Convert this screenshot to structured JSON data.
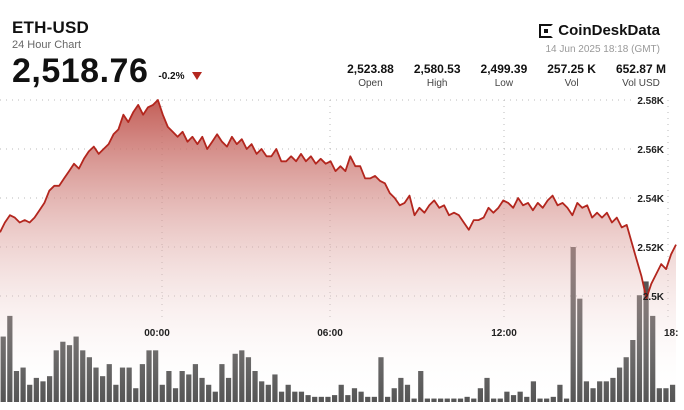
{
  "header": {
    "symbol": "ETH-USD",
    "subtitle": "24 Hour Chart",
    "price": "2,518.76",
    "change": "-0.2%"
  },
  "brand": {
    "name": "CoinDeskData",
    "timestamp": "14 Jun 2025 18:18 (GMT)"
  },
  "stats": [
    {
      "value": "2,523.88",
      "label": "Open"
    },
    {
      "value": "2,580.53",
      "label": "High"
    },
    {
      "value": "2,499.39",
      "label": "Low"
    },
    {
      "value": "257.25 K",
      "label": "Vol"
    },
    {
      "value": "652.87 M",
      "label": "Vol USD"
    }
  ],
  "colors": {
    "line": "#b3261e",
    "fill_top": "#c0564f",
    "volume": "#555555",
    "down_arrow": "#b3261e"
  },
  "chart_data": {
    "type": "area",
    "y_ticks": [
      "2.58K",
      "2.56K",
      "2.54K",
      "2.52K",
      "2.5K"
    ],
    "x_ticks": [
      "00:00",
      "06:00",
      "12:00",
      "18:"
    ],
    "ylim": [
      2500,
      2580
    ],
    "grid": true,
    "series": [
      {
        "values": [
          2526,
          2530,
          2533,
          2532,
          2530,
          2531,
          2530,
          2532,
          2535,
          2538,
          2543,
          2545,
          2545,
          2548,
          2551,
          2554,
          2552,
          2556,
          2559,
          2561,
          2558,
          2560,
          2562,
          2566,
          2568,
          2574,
          2571,
          2575,
          2578,
          2574,
          2577,
          2578,
          2580,
          2574,
          2569,
          2567,
          2565,
          2567,
          2563,
          2565,
          2562,
          2565,
          2560,
          2563,
          2566,
          2563,
          2561,
          2565,
          2562,
          2564,
          2560,
          2562,
          2558,
          2560,
          2557,
          2557,
          2560,
          2555,
          2555,
          2557,
          2555,
          2558,
          2555,
          2557,
          2554,
          2556,
          2554,
          2555,
          2551,
          2553,
          2551,
          2557,
          2553,
          2553,
          2548,
          2548,
          2549,
          2547,
          2546,
          2542,
          2540,
          2537,
          2538,
          2541,
          2533,
          2536,
          2534,
          2537,
          2539,
          2536,
          2537,
          2533,
          2534,
          2533,
          2530,
          2527,
          2531,
          2531,
          2532,
          2536,
          2534,
          2536,
          2539,
          2538,
          2536,
          2540,
          2537,
          2538,
          2535,
          2538,
          2536,
          2539,
          2541,
          2537,
          2538,
          2536,
          2533,
          2538,
          2536,
          2537,
          2532,
          2534,
          2532,
          2534,
          2530,
          2532,
          2528,
          2529,
          2522,
          2515,
          2508,
          2499,
          2505,
          2509,
          2513,
          2511,
          2517,
          2521
        ]
      }
    ],
    "volume": [
      38,
      50,
      18,
      20,
      10,
      14,
      12,
      15,
      30,
      35,
      33,
      38,
      30,
      26,
      20,
      15,
      22,
      10,
      20,
      20,
      8,
      22,
      30,
      30,
      10,
      18,
      8,
      18,
      16,
      22,
      14,
      10,
      6,
      22,
      14,
      28,
      30,
      26,
      18,
      12,
      10,
      16,
      6,
      10,
      6,
      6,
      4,
      3,
      3,
      3,
      4,
      10,
      4,
      8,
      6,
      3,
      3,
      26,
      3,
      8,
      14,
      10,
      2,
      18,
      2,
      2,
      2,
      2,
      2,
      2,
      3,
      2,
      8,
      14,
      2,
      2,
      6,
      4,
      6,
      3,
      12,
      2,
      2,
      3,
      10,
      2,
      90,
      60,
      12,
      8,
      12,
      12,
      14,
      20,
      26,
      36,
      62,
      70,
      50,
      8,
      8,
      10
    ]
  }
}
